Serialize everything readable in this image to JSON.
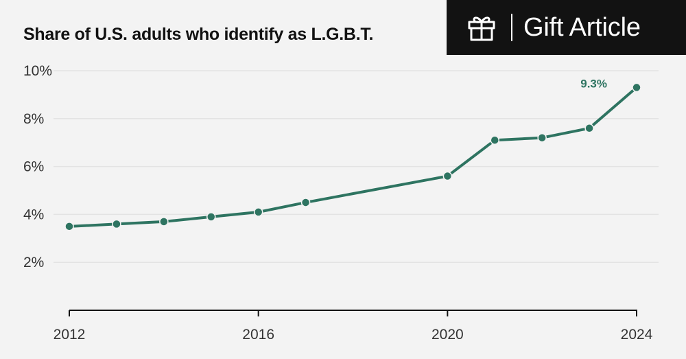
{
  "gift_button": {
    "label": "Gift Article",
    "icon": "gift-icon"
  },
  "colors": {
    "background": "#f3f3f3",
    "line": "#2e7461",
    "grid": "#e3e3e3",
    "axis": "#121212",
    "banner": "#121212"
  },
  "chart_data": {
    "type": "line",
    "title": "Share of U.S. adults who identify as L.G.B.T.",
    "xlabel": "",
    "ylabel": "",
    "x": [
      2012,
      2013,
      2014,
      2015,
      2016,
      2017,
      2020,
      2021,
      2022,
      2023,
      2024
    ],
    "series": [
      {
        "values": [
          3.5,
          3.6,
          3.7,
          3.9,
          4.1,
          4.5,
          5.6,
          7.1,
          7.2,
          7.6,
          9.3
        ]
      }
    ],
    "xlim": [
      2012,
      2024
    ],
    "ylim": [
      0,
      10
    ],
    "x_ticks": [
      2012,
      2016,
      2020,
      2024
    ],
    "x_tick_labels": [
      "2012",
      "2016",
      "2020",
      "2024"
    ],
    "y_ticks": [
      2,
      4,
      6,
      8,
      10
    ],
    "y_tick_labels": [
      "2%",
      "4%",
      "6%",
      "8%",
      "10%"
    ],
    "annotations": [
      {
        "x": 2024,
        "y": 9.3,
        "text": "9.3%"
      }
    ],
    "grid": true
  }
}
